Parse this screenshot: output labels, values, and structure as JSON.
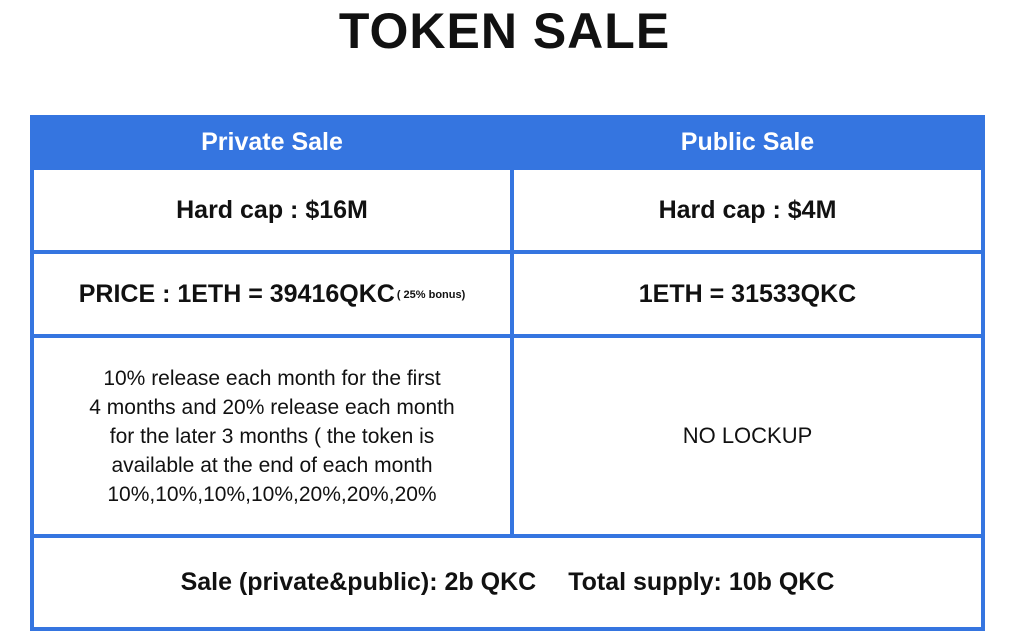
{
  "title": "TOKEN SALE",
  "table": {
    "headers": {
      "private": "Private Sale",
      "public": "Public Sale"
    },
    "hard_cap": {
      "private": "Hard cap : $16M",
      "public": "Hard cap : $4M"
    },
    "price": {
      "private": "PRICE : 1ETH = 39416QKC",
      "private_bonus": "( 25% bonus)",
      "public": "1ETH = 31533QKC"
    },
    "lockup": {
      "private_lines": [
        "10% release each month for the first",
        "4 months and 20% release each month",
        "for the later 3 months ( the token is",
        "available at the end of each month",
        "10%,10%,10%,10%,20%,20%,20%"
      ],
      "public": "NO LOCKUP"
    },
    "footer": {
      "sale": "Sale (private&public): 2b QKC",
      "total_supply": "Total supply: 10b QKC"
    }
  },
  "colors": {
    "accent": "#3575e0",
    "text": "#111111",
    "background": "#ffffff"
  }
}
